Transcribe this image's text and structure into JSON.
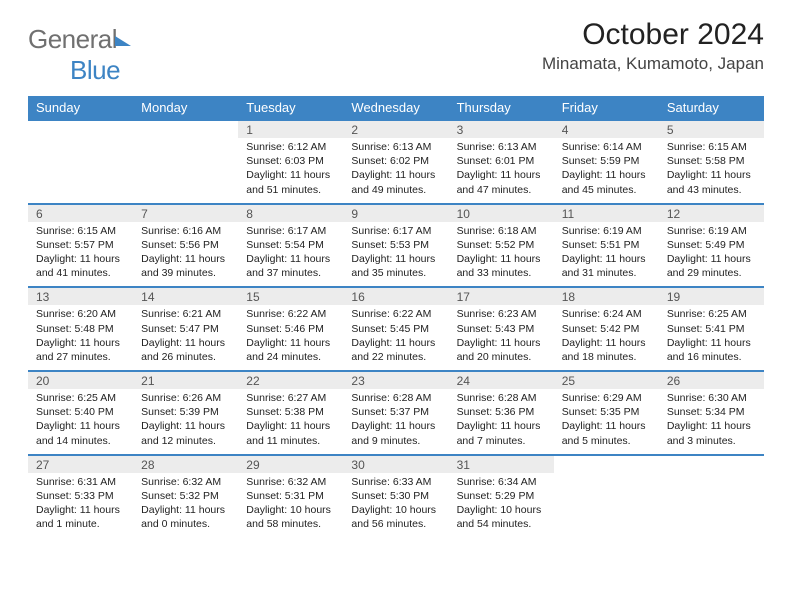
{
  "brand": {
    "part1": "General",
    "part2": "Blue"
  },
  "title": "October 2024",
  "location": "Minamata, Kumamoto, Japan",
  "colors": {
    "accent": "#3d84c4",
    "header_row_bg": "#ececec",
    "text": "#222222",
    "muted": "#707070"
  },
  "dayHeaders": [
    "Sunday",
    "Monday",
    "Tuesday",
    "Wednesday",
    "Thursday",
    "Friday",
    "Saturday"
  ],
  "weeks": [
    [
      null,
      null,
      {
        "n": "1",
        "sr": "6:12 AM",
        "ss": "6:03 PM",
        "dl": "11 hours and 51 minutes."
      },
      {
        "n": "2",
        "sr": "6:13 AM",
        "ss": "6:02 PM",
        "dl": "11 hours and 49 minutes."
      },
      {
        "n": "3",
        "sr": "6:13 AM",
        "ss": "6:01 PM",
        "dl": "11 hours and 47 minutes."
      },
      {
        "n": "4",
        "sr": "6:14 AM",
        "ss": "5:59 PM",
        "dl": "11 hours and 45 minutes."
      },
      {
        "n": "5",
        "sr": "6:15 AM",
        "ss": "5:58 PM",
        "dl": "11 hours and 43 minutes."
      }
    ],
    [
      {
        "n": "6",
        "sr": "6:15 AM",
        "ss": "5:57 PM",
        "dl": "11 hours and 41 minutes."
      },
      {
        "n": "7",
        "sr": "6:16 AM",
        "ss": "5:56 PM",
        "dl": "11 hours and 39 minutes."
      },
      {
        "n": "8",
        "sr": "6:17 AM",
        "ss": "5:54 PM",
        "dl": "11 hours and 37 minutes."
      },
      {
        "n": "9",
        "sr": "6:17 AM",
        "ss": "5:53 PM",
        "dl": "11 hours and 35 minutes."
      },
      {
        "n": "10",
        "sr": "6:18 AM",
        "ss": "5:52 PM",
        "dl": "11 hours and 33 minutes."
      },
      {
        "n": "11",
        "sr": "6:19 AM",
        "ss": "5:51 PM",
        "dl": "11 hours and 31 minutes."
      },
      {
        "n": "12",
        "sr": "6:19 AM",
        "ss": "5:49 PM",
        "dl": "11 hours and 29 minutes."
      }
    ],
    [
      {
        "n": "13",
        "sr": "6:20 AM",
        "ss": "5:48 PM",
        "dl": "11 hours and 27 minutes."
      },
      {
        "n": "14",
        "sr": "6:21 AM",
        "ss": "5:47 PM",
        "dl": "11 hours and 26 minutes."
      },
      {
        "n": "15",
        "sr": "6:22 AM",
        "ss": "5:46 PM",
        "dl": "11 hours and 24 minutes."
      },
      {
        "n": "16",
        "sr": "6:22 AM",
        "ss": "5:45 PM",
        "dl": "11 hours and 22 minutes."
      },
      {
        "n": "17",
        "sr": "6:23 AM",
        "ss": "5:43 PM",
        "dl": "11 hours and 20 minutes."
      },
      {
        "n": "18",
        "sr": "6:24 AM",
        "ss": "5:42 PM",
        "dl": "11 hours and 18 minutes."
      },
      {
        "n": "19",
        "sr": "6:25 AM",
        "ss": "5:41 PM",
        "dl": "11 hours and 16 minutes."
      }
    ],
    [
      {
        "n": "20",
        "sr": "6:25 AM",
        "ss": "5:40 PM",
        "dl": "11 hours and 14 minutes."
      },
      {
        "n": "21",
        "sr": "6:26 AM",
        "ss": "5:39 PM",
        "dl": "11 hours and 12 minutes."
      },
      {
        "n": "22",
        "sr": "6:27 AM",
        "ss": "5:38 PM",
        "dl": "11 hours and 11 minutes."
      },
      {
        "n": "23",
        "sr": "6:28 AM",
        "ss": "5:37 PM",
        "dl": "11 hours and 9 minutes."
      },
      {
        "n": "24",
        "sr": "6:28 AM",
        "ss": "5:36 PM",
        "dl": "11 hours and 7 minutes."
      },
      {
        "n": "25",
        "sr": "6:29 AM",
        "ss": "5:35 PM",
        "dl": "11 hours and 5 minutes."
      },
      {
        "n": "26",
        "sr": "6:30 AM",
        "ss": "5:34 PM",
        "dl": "11 hours and 3 minutes."
      }
    ],
    [
      {
        "n": "27",
        "sr": "6:31 AM",
        "ss": "5:33 PM",
        "dl": "11 hours and 1 minute."
      },
      {
        "n": "28",
        "sr": "6:32 AM",
        "ss": "5:32 PM",
        "dl": "11 hours and 0 minutes."
      },
      {
        "n": "29",
        "sr": "6:32 AM",
        "ss": "5:31 PM",
        "dl": "10 hours and 58 minutes."
      },
      {
        "n": "30",
        "sr": "6:33 AM",
        "ss": "5:30 PM",
        "dl": "10 hours and 56 minutes."
      },
      {
        "n": "31",
        "sr": "6:34 AM",
        "ss": "5:29 PM",
        "dl": "10 hours and 54 minutes."
      },
      null,
      null
    ]
  ],
  "labels": {
    "sunrise": "Sunrise: ",
    "sunset": "Sunset: ",
    "daylight": "Daylight: "
  }
}
